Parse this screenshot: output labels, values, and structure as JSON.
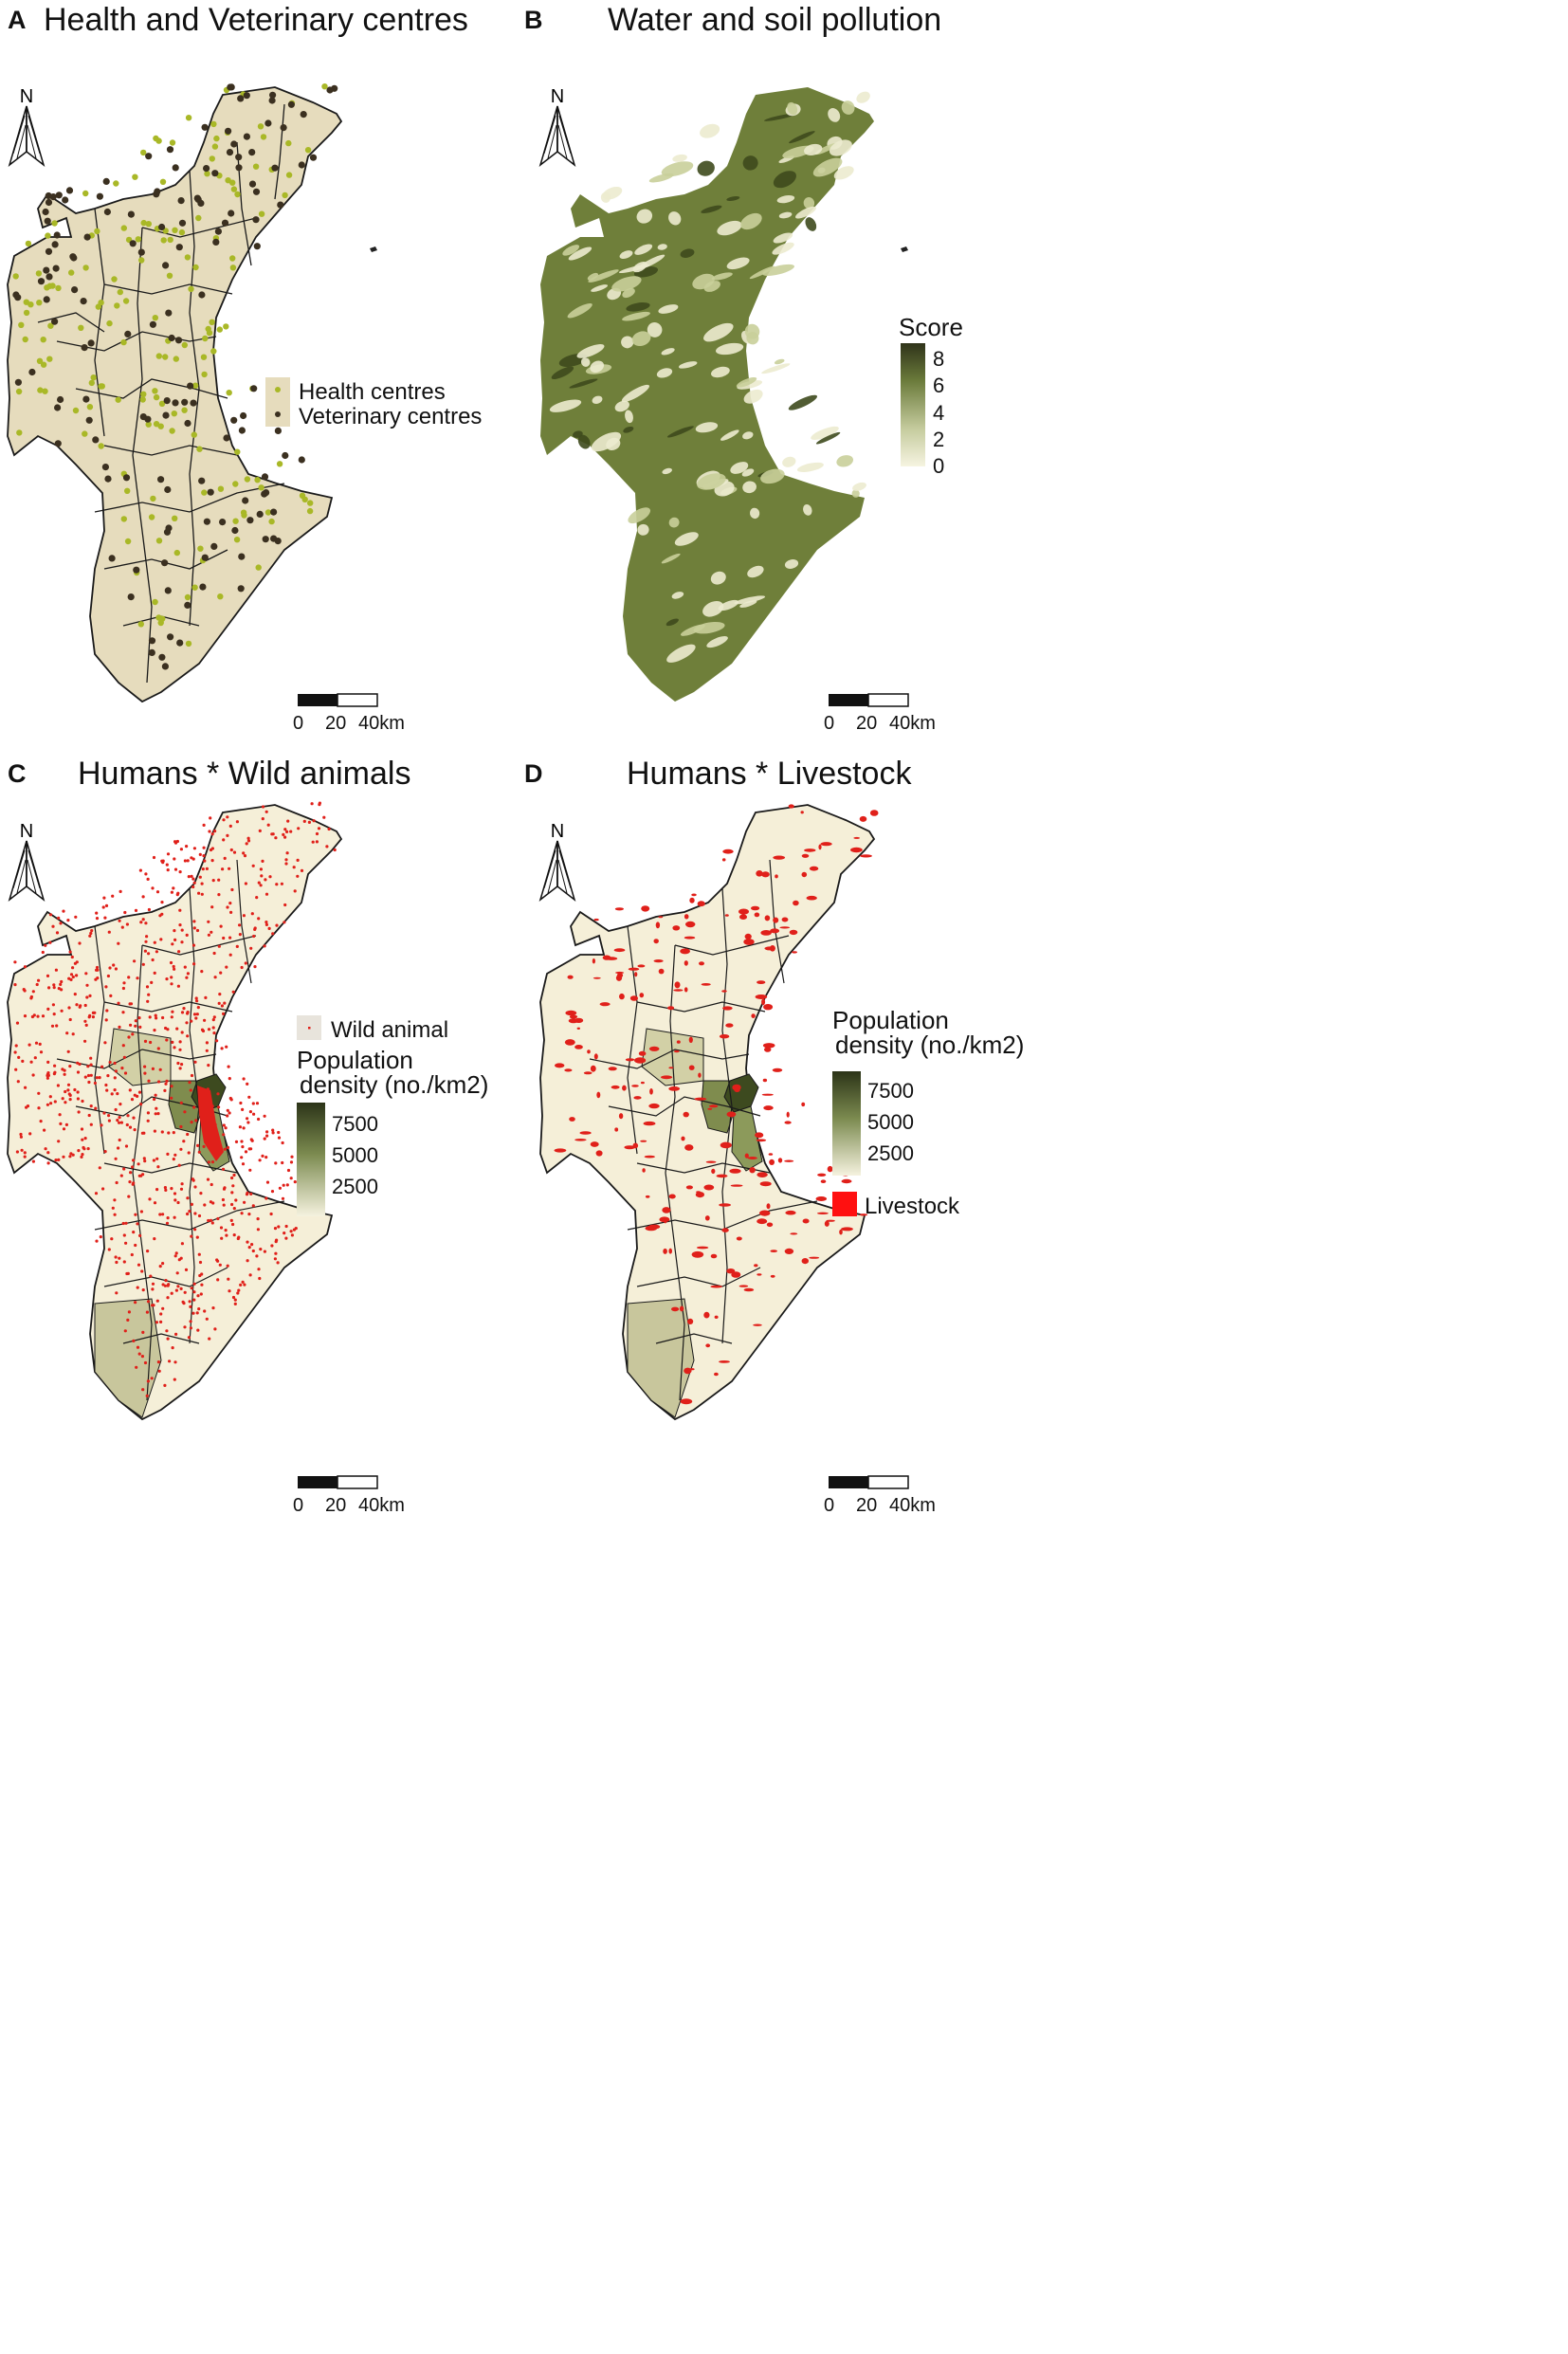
{
  "panels": [
    {
      "label": "A",
      "title": "Health and Veterinary centres",
      "legend": {
        "items": [
          {
            "label": "Health centres",
            "color": "#a9b827"
          },
          {
            "label": "Veterinary centres",
            "color": "#3b3020"
          }
        ]
      }
    },
    {
      "label": "B",
      "title": "Water and soil pollution",
      "legend": {
        "title": "Score",
        "ticks": [
          "8",
          "6",
          "4",
          "2",
          "0"
        ],
        "colors": [
          "#3a3f1e",
          "#f3f1dc"
        ]
      }
    },
    {
      "label": "C",
      "title": "Humans * Wild animals",
      "legend": {
        "point_label": "Wild animal",
        "point_color": "#e0201a",
        "title_line1": "Population",
        "title_line2": "density (no./km2)",
        "ticks": [
          "7500",
          "5000",
          "2500"
        ]
      }
    },
    {
      "label": "D",
      "title": "Humans * Livestock",
      "legend": {
        "title_line1": "Population",
        "title_line2": "density (no./km2)",
        "ticks": [
          "7500",
          "5000",
          "2500"
        ],
        "box_label": "Livestock",
        "box_color": "#ff1010"
      }
    }
  ],
  "north_arrow": "N",
  "scale_bar": {
    "labels": [
      "0",
      "20",
      "40km"
    ]
  },
  "colors": {
    "region_fill": "#e6dcbd",
    "region_fill_light": "#f6f0d9",
    "border": "#1a1a1a",
    "health_dot": "#a9b827",
    "vet_dot": "#3b3020",
    "pollution_dark": "#4f5e24",
    "pollution_light": "#eeedd2",
    "density_dark": "#3d4a1f",
    "density_mid": "#7f8c4e",
    "density_low": "#c9c9a0",
    "red": "#e0201a"
  }
}
